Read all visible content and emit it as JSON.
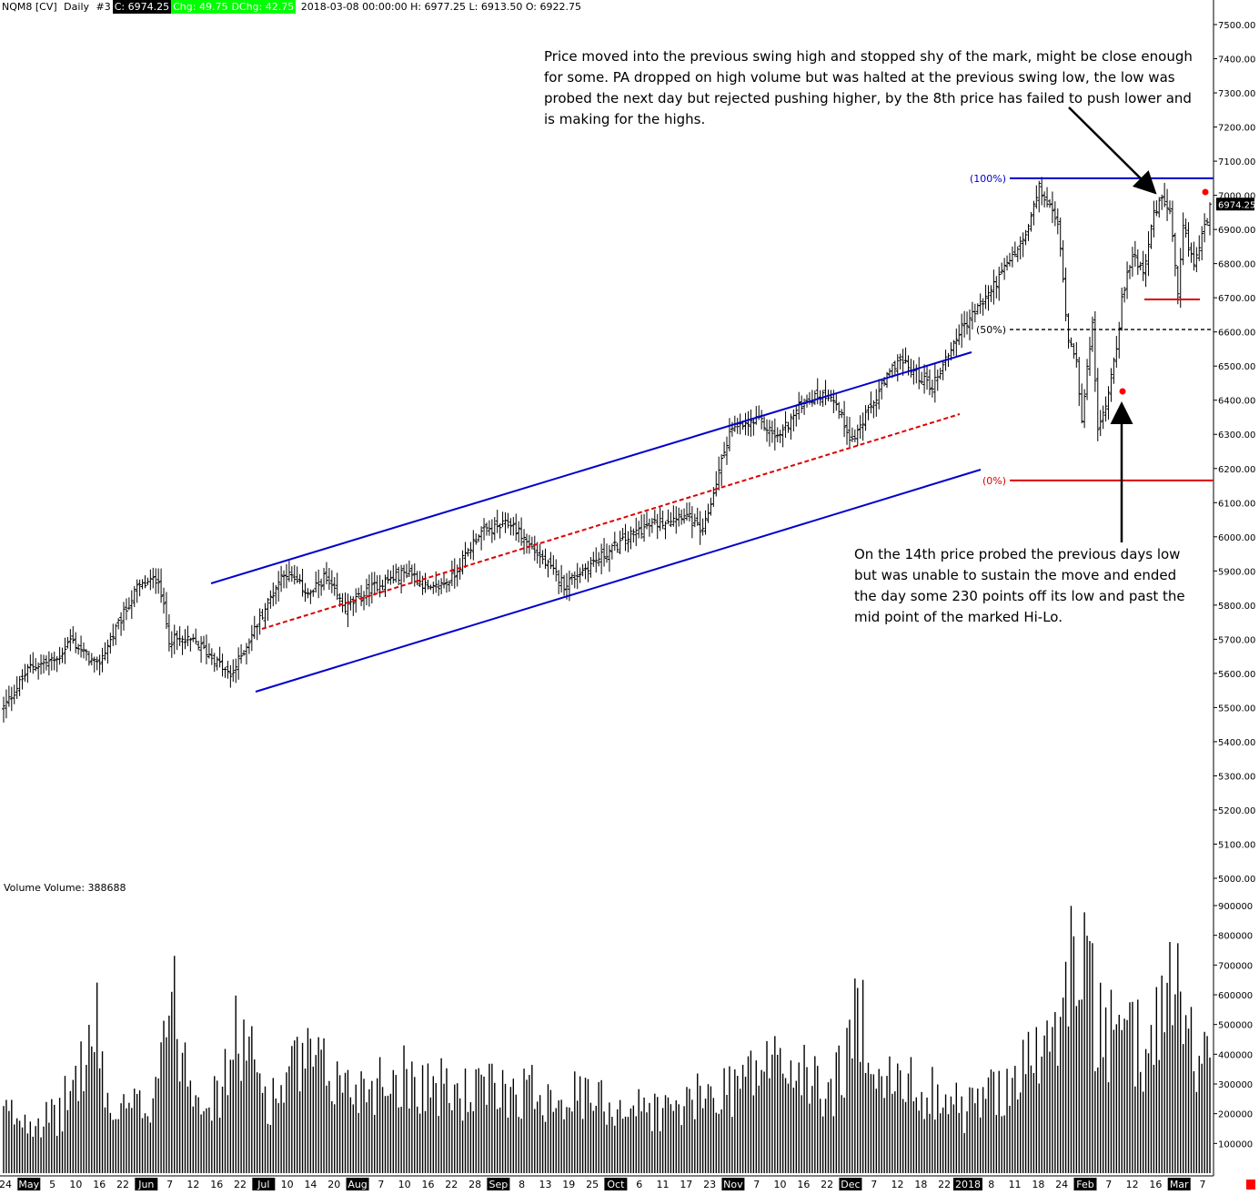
{
  "header": {
    "symbol": "NQM8 [CV]",
    "interval": "Daily",
    "chart_no": "#3",
    "close_box": "C: 6974.25",
    "chg_box": "Chg: 49.75",
    "dchg_box": "DChg: 42.75",
    "ohlc_text": "2018-03-08 00:00:00 H: 6977.25 L: 6913.50 O: 6922.75"
  },
  "volume_label": "Volume  Volume: 388688",
  "annotations": {
    "top": "Price moved into the previous swing high and stopped shy of the mark, might be close enough for some.  PA dropped on high volume but was halted at the previous swing low, the low was probed the next day but rejected pushing higher, by the 8th price has failed to push lower and is making for the highs.",
    "bottom": "On the 14th price probed the previous days low but was unable to sustain the move and ended the day some 230 points off its low and past the mid point of the marked Hi-Lo."
  },
  "colors": {
    "bar": "#000000",
    "channel": "#0000cc",
    "midline": "#dd0000",
    "fib100": "#0000cc",
    "fib0": "#dd0000",
    "price_box": "#000000",
    "dot": "#ff0000"
  },
  "chart_data": {
    "type": "ohlc-bar",
    "price_axis": {
      "min": 5000,
      "max": 7500,
      "ticks": [
        "7500.00",
        "7400.00",
        "7300.00",
        "7200.00",
        "7100.00",
        "7000.00",
        "6900.00",
        "6800.00",
        "6700.00",
        "6600.00",
        "6500.00",
        "6400.00",
        "6300.00",
        "6200.00",
        "6100.00",
        "6000.00",
        "5900.00",
        "5800.00",
        "5700.00",
        "5600.00",
        "5500.00",
        "5400.00",
        "5300.00",
        "5200.00",
        "5100.00",
        "5000.00"
      ]
    },
    "volume_axis": {
      "min": 0,
      "max": 900000,
      "ticks": [
        "900000",
        "800000",
        "700000",
        "600000",
        "500000",
        "400000",
        "300000",
        "200000",
        "100000"
      ]
    },
    "last_price": "6974.25",
    "date_labels": [
      {
        "label": "24",
        "month": false
      },
      {
        "label": "May",
        "month": true
      },
      {
        "label": "5",
        "month": false
      },
      {
        "label": "10",
        "month": false
      },
      {
        "label": "16",
        "month": false
      },
      {
        "label": "22",
        "month": false
      },
      {
        "label": "Jun",
        "month": true
      },
      {
        "label": "7",
        "month": false
      },
      {
        "label": "12",
        "month": false
      },
      {
        "label": "16",
        "month": false
      },
      {
        "label": "22",
        "month": false
      },
      {
        "label": "Jul",
        "month": true
      },
      {
        "label": "10",
        "month": false
      },
      {
        "label": "14",
        "month": false
      },
      {
        "label": "20",
        "month": false
      },
      {
        "label": "Aug",
        "month": true
      },
      {
        "label": "7",
        "month": false
      },
      {
        "label": "10",
        "month": false
      },
      {
        "label": "16",
        "month": false
      },
      {
        "label": "22",
        "month": false
      },
      {
        "label": "28",
        "month": false
      },
      {
        "label": "Sep",
        "month": true
      },
      {
        "label": "8",
        "month": false
      },
      {
        "label": "13",
        "month": false
      },
      {
        "label": "19",
        "month": false
      },
      {
        "label": "25",
        "month": false
      },
      {
        "label": "Oct",
        "month": true
      },
      {
        "label": "6",
        "month": false
      },
      {
        "label": "11",
        "month": false
      },
      {
        "label": "17",
        "month": false
      },
      {
        "label": "23",
        "month": false
      },
      {
        "label": "Nov",
        "month": true
      },
      {
        "label": "7",
        "month": false
      },
      {
        "label": "10",
        "month": false
      },
      {
        "label": "16",
        "month": false
      },
      {
        "label": "22",
        "month": false
      },
      {
        "label": "Dec",
        "month": true
      },
      {
        "label": "7",
        "month": false
      },
      {
        "label": "12",
        "month": false
      },
      {
        "label": "18",
        "month": false
      },
      {
        "label": "22",
        "month": false
      },
      {
        "label": "2018",
        "month": true
      },
      {
        "label": "8",
        "month": false
      },
      {
        "label": "11",
        "month": false
      },
      {
        "label": "18",
        "month": false
      },
      {
        "label": "24",
        "month": false
      },
      {
        "label": "Feb",
        "month": true
      },
      {
        "label": "7",
        "month": false
      },
      {
        "label": "12",
        "month": false
      },
      {
        "label": "16",
        "month": false
      },
      {
        "label": "Mar",
        "month": true
      },
      {
        "label": "7",
        "month": false
      }
    ],
    "fib_levels": [
      {
        "label": "(100%)",
        "price": 7050
      },
      {
        "label": "(50%)",
        "price": 6607
      },
      {
        "label": "(0%)",
        "price": 6165
      }
    ],
    "swing_support": {
      "price": 6695
    },
    "price_anchors": [
      [
        0,
        5500
      ],
      [
        10,
        5620
      ],
      [
        20,
        5640
      ],
      [
        25,
        5700
      ],
      [
        35,
        5620
      ],
      [
        50,
        5850
      ],
      [
        58,
        5880
      ],
      [
        62,
        5700
      ],
      [
        72,
        5690
      ],
      [
        78,
        5650
      ],
      [
        85,
        5590
      ],
      [
        105,
        5900
      ],
      [
        115,
        5830
      ],
      [
        120,
        5880
      ],
      [
        128,
        5790
      ],
      [
        140,
        5860
      ],
      [
        152,
        5900
      ],
      [
        160,
        5840
      ],
      [
        168,
        5880
      ],
      [
        178,
        6010
      ],
      [
        190,
        6040
      ],
      [
        210,
        5860
      ],
      [
        220,
        5920
      ],
      [
        238,
        6020
      ],
      [
        255,
        6070
      ],
      [
        262,
        6010
      ],
      [
        272,
        6310
      ],
      [
        283,
        6340
      ],
      [
        290,
        6290
      ],
      [
        300,
        6400
      ],
      [
        310,
        6420
      ],
      [
        318,
        6280
      ],
      [
        325,
        6380
      ],
      [
        335,
        6520
      ],
      [
        348,
        6440
      ],
      [
        358,
        6600
      ],
      [
        368,
        6700
      ],
      [
        383,
        6880
      ],
      [
        388,
        7020
      ],
      [
        395,
        6920
      ],
      [
        399,
        6580
      ],
      [
        402,
        6530
      ],
      [
        404,
        6330
      ],
      [
        408,
        6640
      ],
      [
        410,
        6300
      ],
      [
        413,
        6390
      ],
      [
        417,
        6560
      ],
      [
        419,
        6690
      ],
      [
        423,
        6830
      ],
      [
        427,
        6780
      ],
      [
        431,
        6940
      ],
      [
        434,
        6990
      ],
      [
        437,
        6950
      ],
      [
        440,
        6700
      ],
      [
        442,
        6900
      ],
      [
        446,
        6800
      ],
      [
        448,
        6850
      ],
      [
        451,
        6935
      ],
      [
        452,
        6974.25
      ]
    ],
    "volume_anchors": [
      [
        0,
        210000
      ],
      [
        20,
        190000
      ],
      [
        35,
        500000
      ],
      [
        40,
        200000
      ],
      [
        55,
        250000
      ],
      [
        62,
        640000
      ],
      [
        70,
        350000
      ],
      [
        80,
        250000
      ],
      [
        88,
        500000
      ],
      [
        100,
        250000
      ],
      [
        112,
        400000
      ],
      [
        130,
        300000
      ],
      [
        150,
        350000
      ],
      [
        170,
        280000
      ],
      [
        190,
        300000
      ],
      [
        210,
        280000
      ],
      [
        230,
        240000
      ],
      [
        250,
        220000
      ],
      [
        270,
        300000
      ],
      [
        290,
        400000
      ],
      [
        310,
        280000
      ],
      [
        322,
        580000
      ],
      [
        330,
        320000
      ],
      [
        350,
        290000
      ],
      [
        360,
        220000
      ],
      [
        380,
        350000
      ],
      [
        395,
        480000
      ],
      [
        403,
        880000
      ],
      [
        410,
        500000
      ],
      [
        418,
        460000
      ],
      [
        430,
        450000
      ],
      [
        438,
        750000
      ],
      [
        445,
        460000
      ],
      [
        452,
        388688
      ]
    ]
  }
}
